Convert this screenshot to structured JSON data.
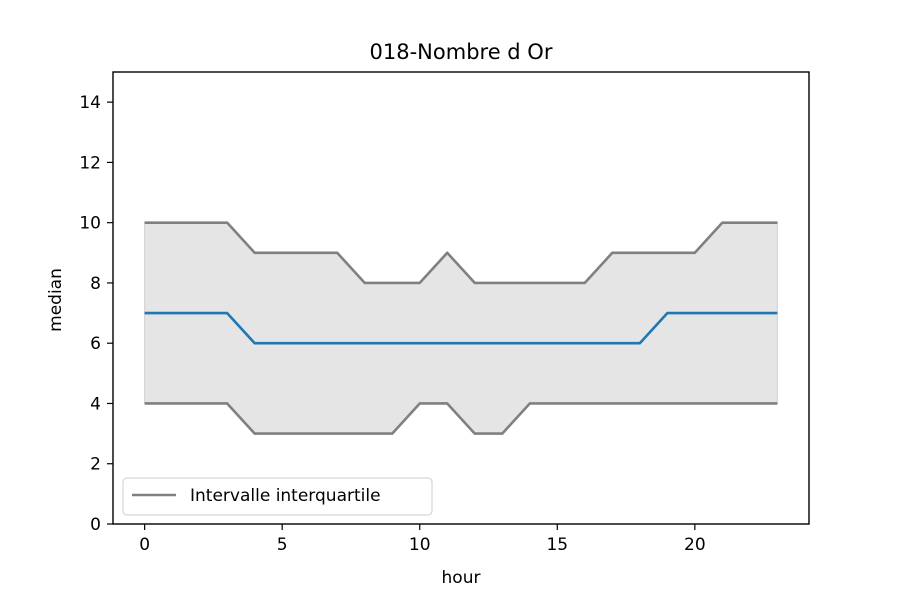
{
  "chart_data": {
    "type": "line",
    "title": "018-Nombre d Or",
    "xlabel": "hour",
    "ylabel": "median",
    "xlim": [
      -1.15,
      24.15
    ],
    "ylim": [
      0,
      15
    ],
    "xticks": [
      0,
      5,
      10,
      15,
      20
    ],
    "yticks": [
      0,
      2,
      4,
      6,
      8,
      10,
      12,
      14
    ],
    "grid": false,
    "legend_position": "lower-left",
    "x": [
      0,
      1,
      2,
      3,
      4,
      5,
      6,
      7,
      8,
      9,
      10,
      11,
      12,
      13,
      14,
      15,
      16,
      17,
      18,
      19,
      20,
      21,
      22,
      23
    ],
    "series": [
      {
        "name": "",
        "role": "median",
        "color": "#1f77b4",
        "values": [
          7,
          7,
          7,
          7,
          6,
          6,
          6,
          6,
          6,
          6,
          6,
          6,
          6,
          6,
          6,
          6,
          6,
          6,
          6,
          7,
          7,
          7,
          7,
          7
        ]
      },
      {
        "name": "Intervalle interquartile",
        "role": "upper-quartile",
        "color": "#808080",
        "values": [
          10,
          10,
          10,
          10,
          9,
          9,
          9,
          9,
          8,
          8,
          8,
          9,
          8,
          8,
          8,
          8,
          8,
          9,
          9,
          9,
          9,
          10,
          10,
          10
        ]
      },
      {
        "name": "",
        "role": "lower-quartile",
        "color": "#808080",
        "values": [
          4,
          4,
          4,
          4,
          3,
          3,
          3,
          3,
          3,
          3,
          4,
          4,
          3,
          3,
          4,
          4,
          4,
          4,
          4,
          4,
          4,
          4,
          4,
          4
        ]
      }
    ],
    "band_fill_color": "#e5e5e5",
    "legend": [
      "Intervalle interquartile"
    ]
  }
}
